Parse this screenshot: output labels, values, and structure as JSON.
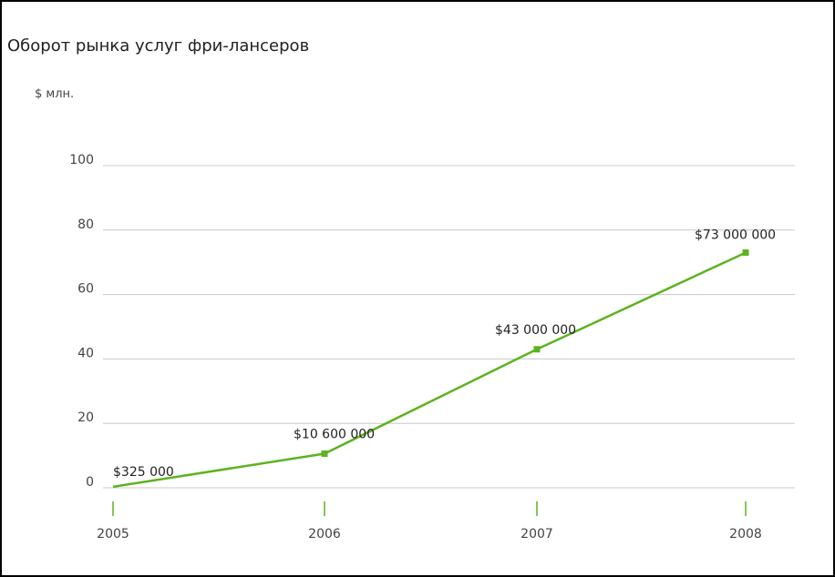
{
  "chart_data": {
    "type": "line",
    "title": "Оборот рынка услуг фри-лансеров",
    "unit_label": "$ млн.",
    "xlabel": "",
    "ylabel": "",
    "categories": [
      "2005",
      "2006",
      "2007",
      "2008"
    ],
    "series": [
      {
        "values": [
          0.325,
          10.6,
          43,
          73
        ],
        "labels": [
          "$325 000",
          "$10 600 000",
          "$43 000 000",
          "$73 000 000"
        ]
      }
    ],
    "ylim": [
      0,
      100
    ],
    "yticks": [
      0,
      20,
      40,
      60,
      80,
      100
    ],
    "grid": true,
    "line_color": "#5db31f",
    "grid_color": "#c8c8c8",
    "tick_color": "#5db31f"
  }
}
